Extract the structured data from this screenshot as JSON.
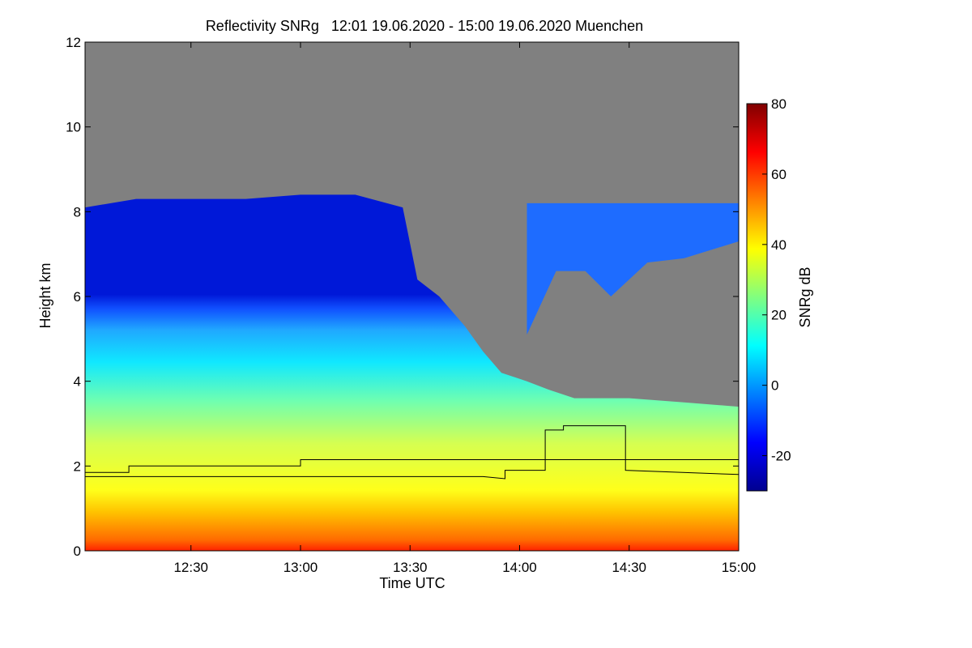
{
  "chart_data": {
    "type": "heatmap",
    "title": "Reflectivity SNRg   12:01 19.06.2020 - 15:00 19.06.2020 Muenchen",
    "xlabel": "Time UTC",
    "ylabel": "Height km",
    "xlim_minutes_utc": [
      721,
      900
    ],
    "ylim": [
      0,
      12
    ],
    "x_ticks": [
      {
        "label": "12:30",
        "minutes": 750
      },
      {
        "label": "13:00",
        "minutes": 780
      },
      {
        "label": "13:30",
        "minutes": 810
      },
      {
        "label": "14:00",
        "minutes": 840
      },
      {
        "label": "14:30",
        "minutes": 870
      },
      {
        "label": "15:00",
        "minutes": 900
      }
    ],
    "y_ticks": [
      0,
      2,
      4,
      6,
      8,
      10,
      12
    ],
    "no_signal_color": "#808080",
    "colorbar": {
      "label": "SNRg dB",
      "range": [
        -30,
        80
      ],
      "ticks": [
        -20,
        0,
        20,
        40,
        60,
        80
      ],
      "colormap": [
        "#00008f",
        "#0000ff",
        "#0080ff",
        "#00ffff",
        "#80ff80",
        "#ffff00",
        "#ff8000",
        "#ff0000",
        "#800000"
      ]
    },
    "echo_top_km": [
      [
        721,
        8.1
      ],
      [
        735,
        8.3
      ],
      [
        750,
        8.3
      ],
      [
        765,
        8.3
      ],
      [
        780,
        8.4
      ],
      [
        795,
        8.4
      ],
      [
        808,
        8.1
      ],
      [
        812,
        6.4
      ],
      [
        818,
        6.0
      ],
      [
        825,
        5.3
      ],
      [
        830,
        4.7
      ],
      [
        835,
        4.2
      ],
      [
        842,
        4.0
      ],
      [
        848,
        3.8
      ],
      [
        855,
        3.6
      ],
      [
        870,
        3.6
      ],
      [
        885,
        3.5
      ],
      [
        900,
        3.4
      ]
    ],
    "upper_cloud_layer": {
      "x_range": [
        842,
        900
      ],
      "base_km": [
        [
          842,
          5.1
        ],
        [
          850,
          6.6
        ],
        [
          858,
          6.6
        ],
        [
          865,
          6.0
        ],
        [
          875,
          6.8
        ],
        [
          885,
          6.9
        ],
        [
          900,
          7.3
        ]
      ],
      "top_km": 8.2
    },
    "series": [
      {
        "x": [
          721,
          733,
          733,
          780,
          780,
          851,
          851,
          900
        ],
        "y": [
          1.85,
          1.85,
          2.0,
          2.0,
          2.15,
          2.15,
          2.15,
          2.15
        ]
      },
      {
        "x": [
          721,
          760,
          800,
          830,
          836,
          836,
          847,
          847,
          852,
          852,
          869,
          869,
          900
        ],
        "y": [
          1.75,
          1.75,
          1.75,
          1.75,
          1.7,
          1.9,
          1.9,
          2.85,
          2.85,
          2.95,
          2.95,
          1.9,
          1.8
        ]
      }
    ]
  }
}
